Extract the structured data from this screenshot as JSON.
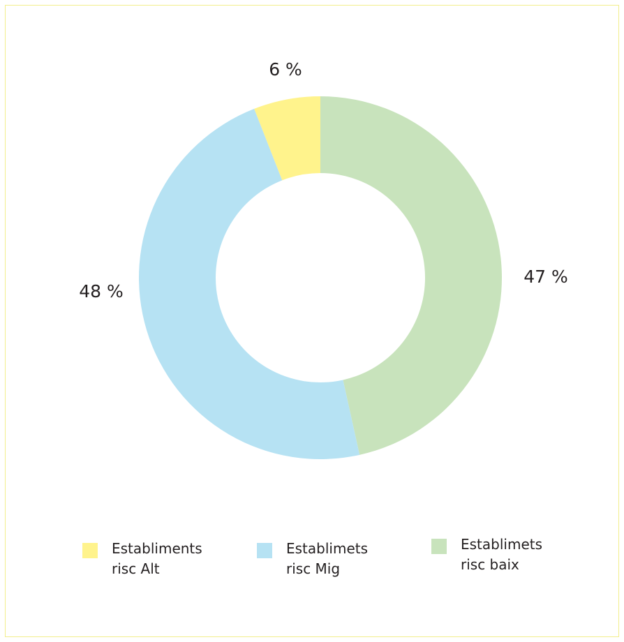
{
  "chart_data": {
    "type": "pie",
    "variant": "donut",
    "categories": [
      "Establiments risc Alt",
      "Establimets risc Mig",
      "Establimets risc baix"
    ],
    "values": [
      6,
      48,
      47
    ],
    "value_labels": [
      "6 %",
      "48 %",
      "47 %"
    ],
    "colors": [
      "#fff38c",
      "#b6e2f3",
      "#c8e3bc"
    ],
    "title": "",
    "legend_position": "bottom"
  },
  "legend": [
    {
      "line1": "Establiments",
      "line2": "risc Alt",
      "color": "#fff38c"
    },
    {
      "line1": "Establimets",
      "line2": "risc Mig",
      "color": "#b6e2f3"
    },
    {
      "line1": "Establimets",
      "line2": "risc baix",
      "color": "#c8e3bc"
    }
  ]
}
